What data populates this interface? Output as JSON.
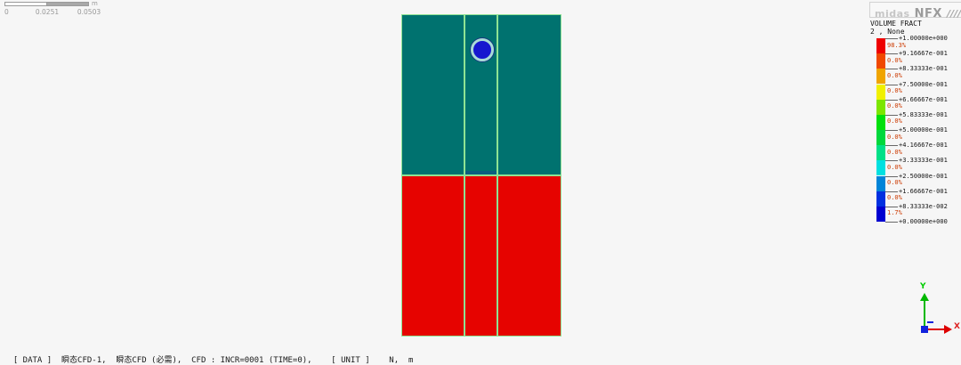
{
  "app": {
    "logo_primary": "midas",
    "logo_secondary": "NFX",
    "logo_slashes": "////"
  },
  "ruler": {
    "labels": [
      "0",
      "0.0251",
      "0.0503"
    ],
    "unit": "m"
  },
  "viewport": {
    "phase2_color": "#00726f",
    "phase1_color": "#e60300",
    "mesh_line_color": "#8fe393",
    "bubble_fill": "#1616cf",
    "bubble_ring": "#a9dbd6",
    "interface_strip_color": "#0e5c82"
  },
  "legend": {
    "title": "VOLUME FRACT",
    "subtitle": "2 , None",
    "percent_color": "#cc3a00",
    "ticks": [
      "+1.00000e+000",
      "+9.16667e-001",
      "+8.33333e-001",
      "+7.50000e-001",
      "+6.66667e-001",
      "+5.83333e-001",
      "+5.00000e-001",
      "+4.16667e-001",
      "+3.33333e-001",
      "+2.50000e-001",
      "+1.66667e-001",
      "+8.33333e-002",
      "+0.00000e+000"
    ],
    "bands": [
      {
        "color": "#ee0000",
        "percent": "98.3%"
      },
      {
        "color": "#f04800",
        "percent": "0.0%"
      },
      {
        "color": "#f0a400",
        "percent": "0.0%"
      },
      {
        "color": "#f0f000",
        "percent": "0.0%"
      },
      {
        "color": "#7ce600",
        "percent": "0.0%"
      },
      {
        "color": "#00e00c",
        "percent": "0.0%"
      },
      {
        "color": "#00d83c",
        "percent": "0.0%"
      },
      {
        "color": "#00e087",
        "percent": "0.0%"
      },
      {
        "color": "#00e0e0",
        "percent": "0.0%"
      },
      {
        "color": "#0084d8",
        "percent": "0.0%"
      },
      {
        "color": "#0030e0",
        "percent": "0.0%"
      },
      {
        "color": "#0000d0",
        "percent": "1.7%"
      }
    ]
  },
  "axis_triad": {
    "x_label": "X",
    "y_label": "Y",
    "x_color": "#dd0000",
    "y_color": "#00b800",
    "z_color": "#1122dd"
  },
  "status_bar": {
    "text": "[ DATA ]  瞬态CFD-1,  瞬态CFD (必需),  CFD : INCR=0001 (TIME=0),    [ UNIT ]    N,  m"
  }
}
